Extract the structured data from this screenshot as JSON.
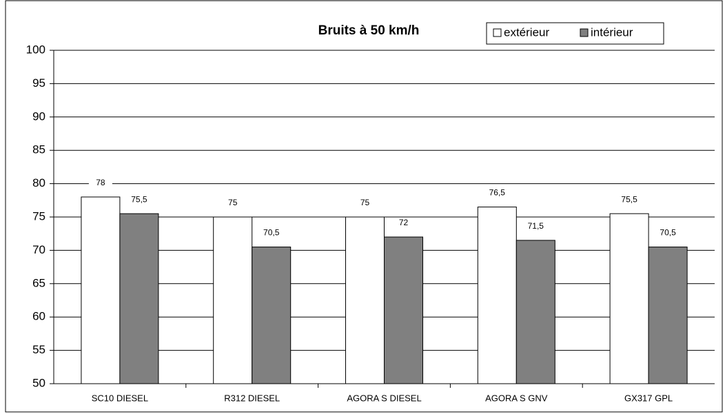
{
  "chart_data": {
    "type": "bar",
    "title": "Bruits à 50 km/h",
    "categories": [
      "SC10 DIESEL",
      "R312 DIESEL",
      "AGORA S DIESEL",
      "AGORA S GNV",
      "GX317 GPL"
    ],
    "series": [
      {
        "name": "extérieur",
        "color": "#ffffff",
        "values": [
          78,
          75,
          75,
          76.5,
          75.5
        ],
        "value_labels": [
          "78",
          "75",
          "75",
          "76,5",
          "75,5"
        ]
      },
      {
        "name": "intérieur",
        "color": "#808080",
        "values": [
          75.5,
          70.5,
          72,
          71.5,
          70.5
        ],
        "value_labels": [
          "75,5",
          "70,5",
          "72",
          "71,5",
          "70,5"
        ]
      }
    ],
    "ylim": [
      50,
      100
    ],
    "yticks": [
      50,
      55,
      60,
      65,
      70,
      75,
      80,
      85,
      90,
      95,
      100
    ],
    "grid": true,
    "legend": "top-right"
  }
}
